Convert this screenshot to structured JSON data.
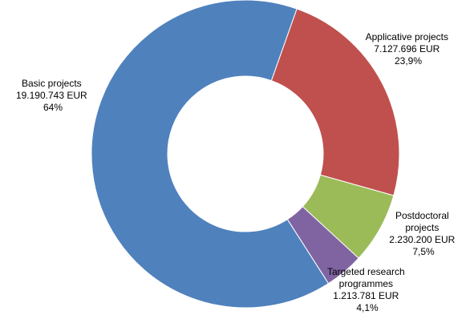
{
  "chart_data": {
    "type": "pie",
    "style": "donut",
    "legend": "none",
    "categories": [
      "Applicative projects",
      "Postdoctoral projects",
      "Targeted research programmes",
      "Basic projects"
    ],
    "values": [
      7127696,
      2230200,
      1213781,
      19190743
    ],
    "series": [
      {
        "values": [
          7127696,
          2230200,
          1213781,
          19190743
        ],
        "colors": [
          "#c0504d",
          "#9bbb59",
          "#8064a2",
          "#4f81bd"
        ]
      }
    ],
    "labels": [
      {
        "lines": [
          "Applicative projects",
          "7.127.696 EUR",
          "23,9%"
        ]
      },
      {
        "lines": [
          "Postdoctoral",
          "projects",
          "2.230.200 EUR",
          "7,5%"
        ]
      },
      {
        "lines": [
          "Targeted research",
          "programmes",
          "1.213.781 EUR",
          "4,1%"
        ]
      },
      {
        "lines": [
          "Basic projects",
          "19.190.743 EUR",
          "64%"
        ]
      }
    ]
  }
}
